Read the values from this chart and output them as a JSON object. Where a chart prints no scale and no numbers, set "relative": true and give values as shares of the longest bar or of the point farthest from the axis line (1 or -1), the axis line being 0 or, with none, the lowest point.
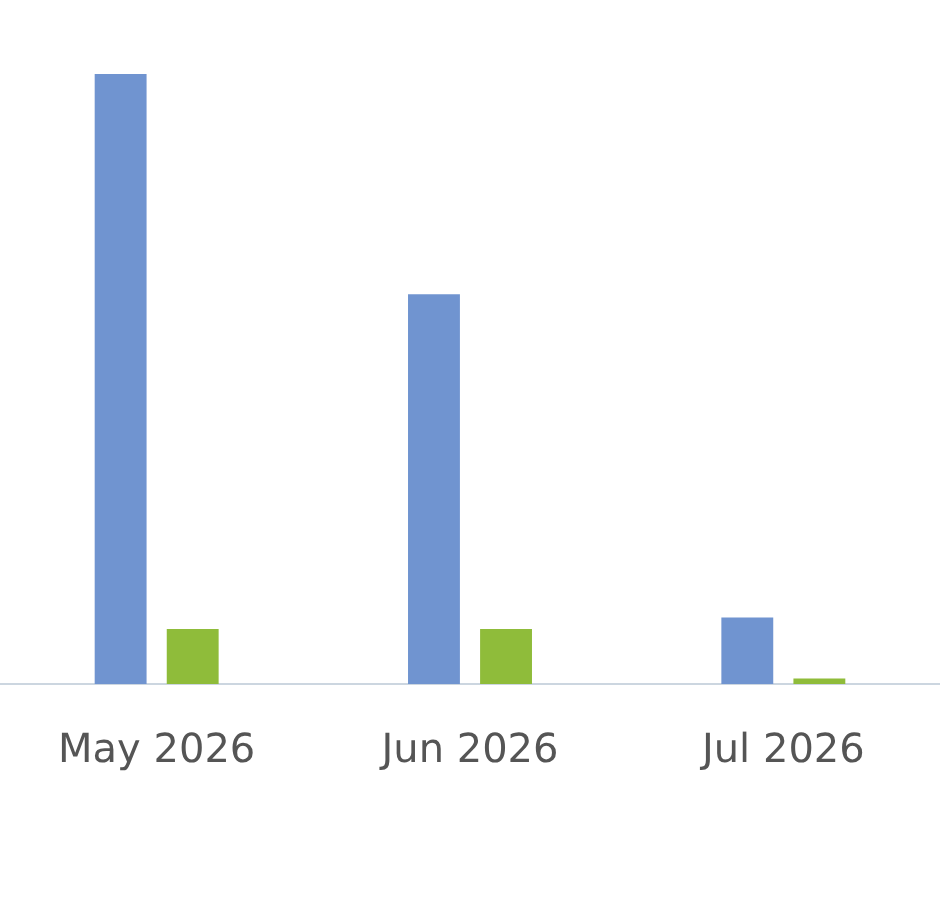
{
  "chart_data": {
    "type": "bar",
    "relative": true,
    "categories": [
      "May 2026",
      "Jun 2026",
      "Jul 2026"
    ],
    "series": [
      {
        "color": "#7094d0",
        "values": [
          1,
          0.639,
          0.109
        ]
      },
      {
        "color": "#8fbc3a",
        "values": [
          0.09,
          0.09,
          0.009
        ]
      }
    ],
    "legend": false
  }
}
